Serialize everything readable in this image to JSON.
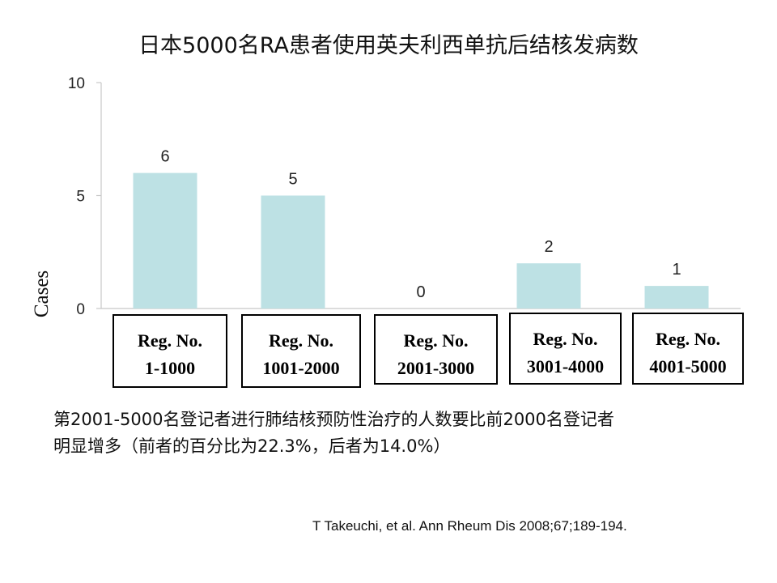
{
  "chart_data": {
    "type": "bar",
    "title": "日本5000名RA患者使用英夫利西单抗后结核发病数",
    "ylabel": "Cases",
    "xlabel": "",
    "ylim": [
      0,
      10
    ],
    "yticks": [
      "10",
      "5",
      "0"
    ],
    "categories": [
      [
        "Reg. No.",
        "1-1000"
      ],
      [
        "Reg. No.",
        "1001-2000"
      ],
      [
        "Reg. No.",
        "2001-3000"
      ],
      [
        "Reg. No.",
        "3001-4000"
      ],
      [
        "Reg. No.",
        "4001-5000"
      ]
    ],
    "values": [
      6,
      5,
      0,
      2,
      1
    ],
    "data_labels": [
      "6",
      "5",
      "0",
      "2",
      "1"
    ],
    "bar_color": "#bde1e4",
    "grid": false,
    "legend": "none"
  },
  "note": {
    "line1": "第2001-5000名登记者进行肺结核预防性治疗的人数要比前2000名登记者",
    "line2": "明显增多（前者的百分比为22.3%，后者为14.0%）"
  },
  "citation": "T Takeuchi, et al. Ann Rheum Dis 2008;67;189-194."
}
